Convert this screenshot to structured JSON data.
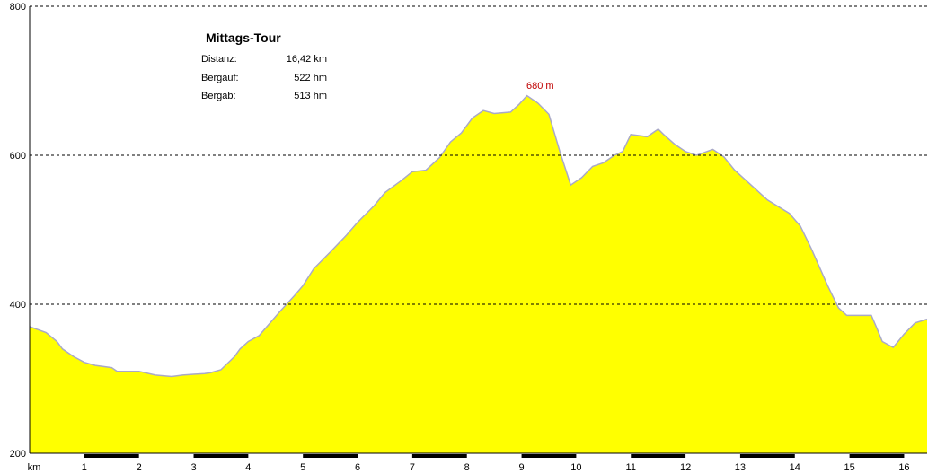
{
  "chart_data": {
    "type": "area",
    "title": "Mittags-Tour",
    "xlabel": "km",
    "ylabel": "",
    "xlim": [
      0,
      16.42
    ],
    "ylim": [
      200,
      800
    ],
    "yticks": [
      200,
      400,
      600,
      800
    ],
    "xticks": [
      1,
      2,
      3,
      4,
      5,
      6,
      7,
      8,
      9,
      10,
      11,
      12,
      13,
      14,
      15,
      16
    ],
    "grid": "horizontal-dashed",
    "colors": {
      "fill": "#ffff00",
      "line": "#a9a9c8",
      "grid": "#000000",
      "peak": "#c00000"
    },
    "x": [
      0,
      0.3,
      0.5,
      0.6,
      0.8,
      1.0,
      1.2,
      1.5,
      1.6,
      2.0,
      2.3,
      2.6,
      2.8,
      3.0,
      3.2,
      3.3,
      3.5,
      3.75,
      3.85,
      4.0,
      4.2,
      4.4,
      4.6,
      4.85,
      5.0,
      5.2,
      5.5,
      5.8,
      6.0,
      6.3,
      6.5,
      6.8,
      7.0,
      7.25,
      7.5,
      7.7,
      7.9,
      8.1,
      8.3,
      8.5,
      8.8,
      8.95,
      9.1,
      9.2,
      9.3,
      9.5,
      9.7,
      9.9,
      10.1,
      10.3,
      10.5,
      10.7,
      10.85,
      11.0,
      11.3,
      11.5,
      11.6,
      11.8,
      12.0,
      12.2,
      12.5,
      12.7,
      12.9,
      13.2,
      13.5,
      13.9,
      14.1,
      14.3,
      14.6,
      14.8,
      14.95,
      15.2,
      15.4,
      15.5,
      15.6,
      15.8,
      16.0,
      16.2,
      16.42
    ],
    "y": [
      370,
      362,
      350,
      340,
      330,
      322,
      318,
      315,
      310,
      310,
      305,
      303,
      305,
      306,
      307,
      308,
      312,
      330,
      340,
      350,
      358,
      375,
      392,
      412,
      425,
      448,
      470,
      493,
      510,
      532,
      550,
      566,
      578,
      580,
      597,
      618,
      630,
      650,
      660,
      656,
      658,
      668,
      680,
      675,
      670,
      655,
      605,
      560,
      570,
      585,
      590,
      600,
      605,
      628,
      625,
      635,
      628,
      615,
      605,
      600,
      608,
      598,
      580,
      560,
      540,
      522,
      505,
      475,
      425,
      395,
      385,
      385,
      385,
      368,
      350,
      342,
      360,
      375,
      380
    ],
    "peak_label": "680 m",
    "peak": {
      "x": 9.1,
      "y": 680
    }
  },
  "info": {
    "title": "Mittags-Tour",
    "rows": [
      {
        "label": "Distanz:",
        "value": "16,42 km"
      },
      {
        "label": "Bergauf:",
        "value": "522 hm"
      },
      {
        "label": "Bergab:",
        "value": "513 hm"
      }
    ]
  }
}
